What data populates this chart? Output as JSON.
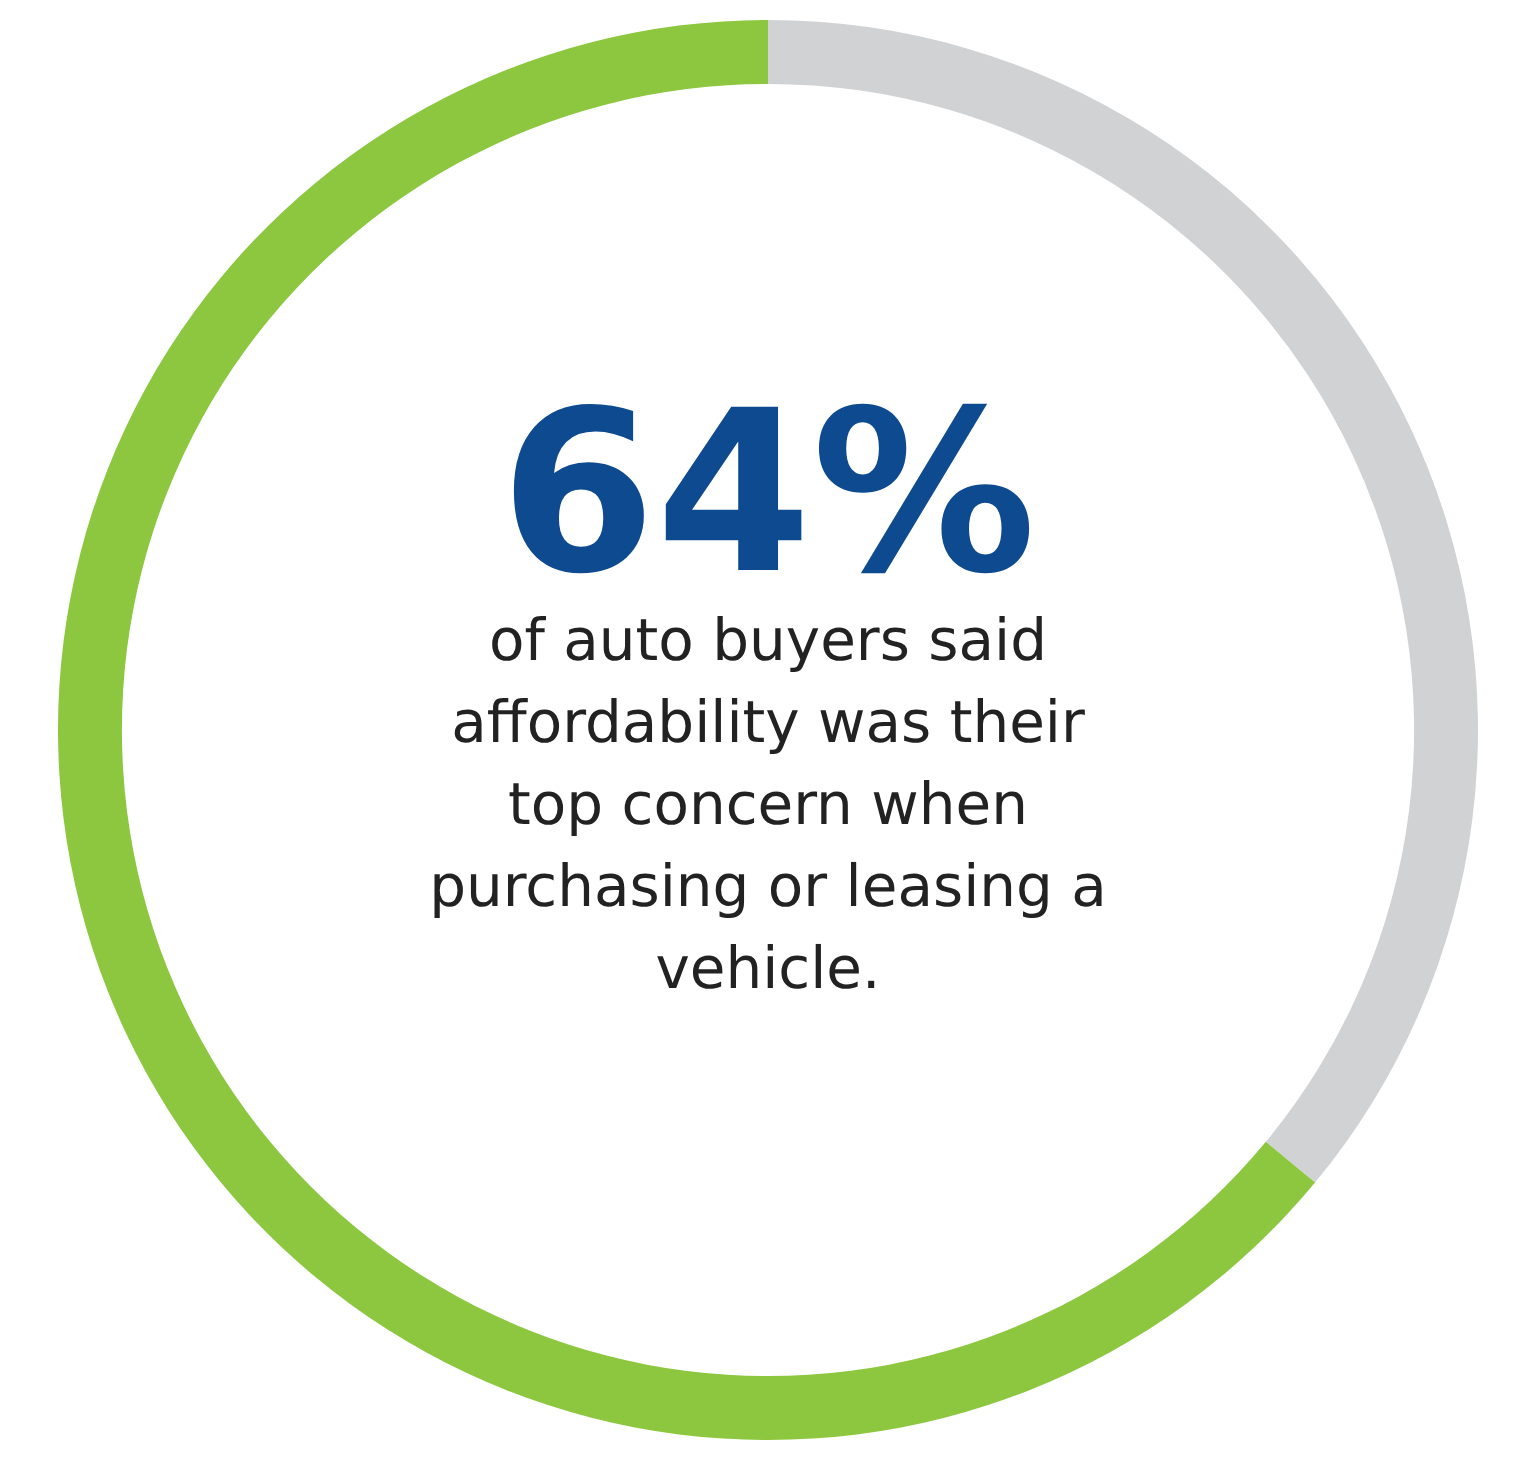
{
  "chart_data": {
    "type": "donut",
    "categories": [
      null,
      null
    ],
    "values": [
      36,
      64
    ],
    "colors": [
      "#d1d2d4",
      "#8dc63f"
    ],
    "value_labels": [
      null,
      "64%"
    ],
    "annotations": [
      "of auto buyers said affordability was their top concern when purchasing or leasing a vehicle."
    ],
    "legend": false
  }
}
